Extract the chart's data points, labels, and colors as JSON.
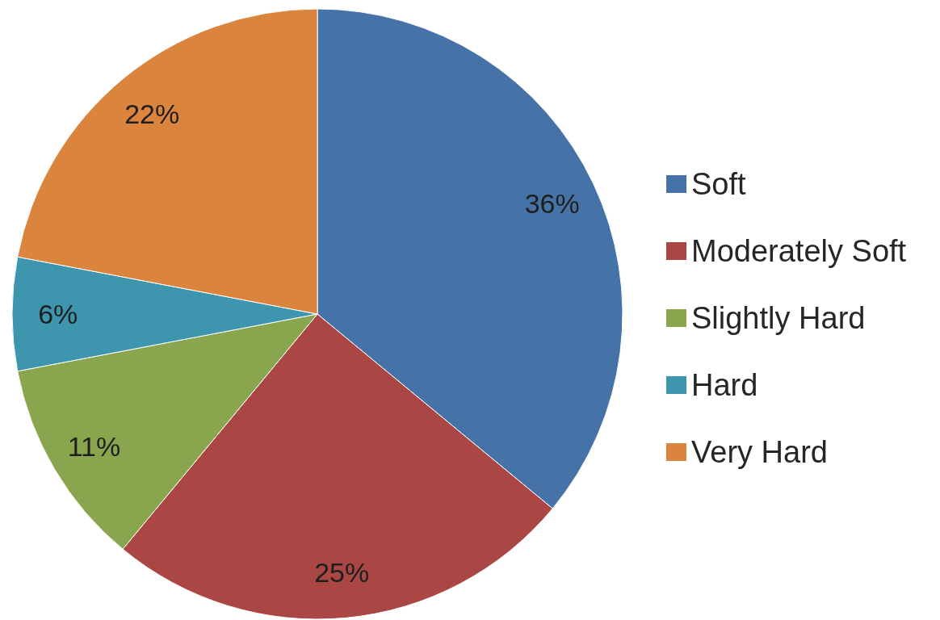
{
  "chart_data": {
    "type": "pie",
    "categories": [
      "Soft",
      "Moderately Soft",
      "Slightly Hard",
      "Hard",
      "Very Hard"
    ],
    "values": [
      36,
      25,
      11,
      6,
      22
    ],
    "colors": [
      "#4572a7",
      "#aa4643",
      "#89a54e",
      "#3d96ae",
      "#db843d"
    ],
    "value_labels": [
      "36%",
      "25%",
      "11%",
      "6%",
      "22%"
    ],
    "legend": "right"
  }
}
